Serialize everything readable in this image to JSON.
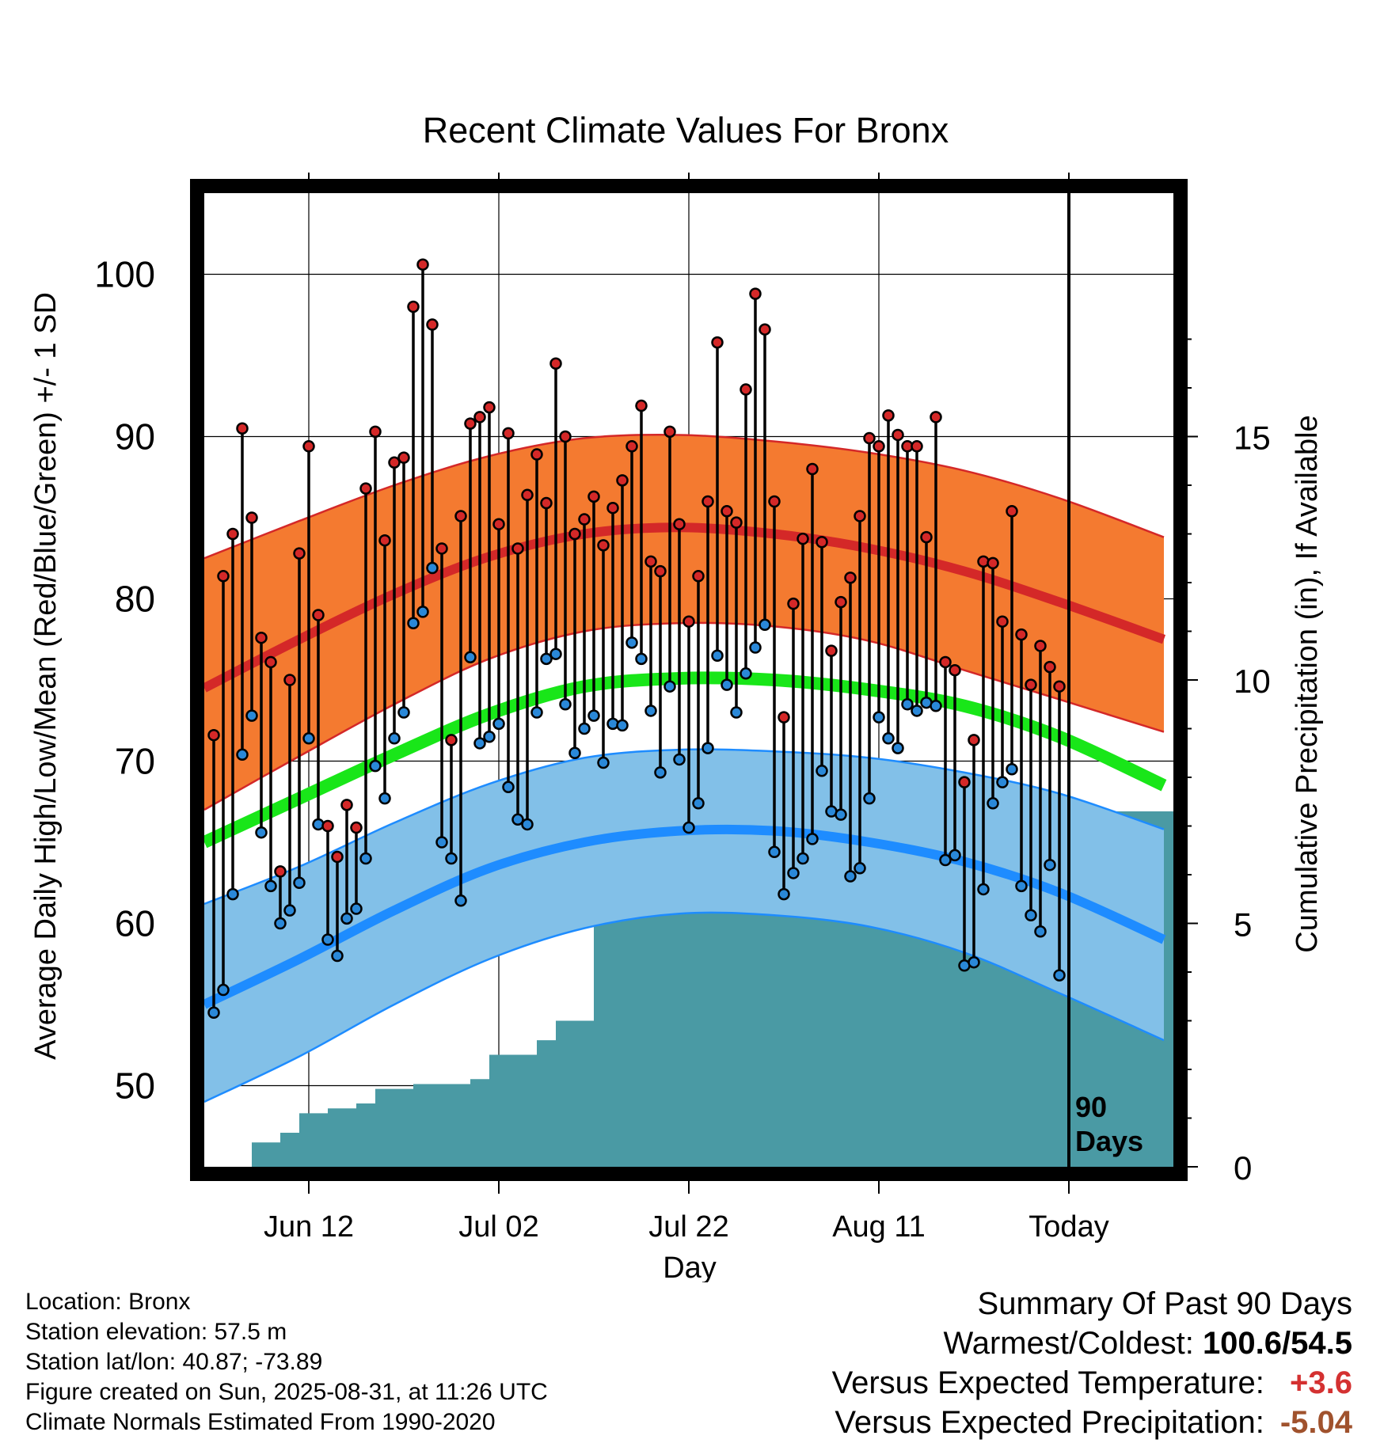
{
  "title": "Recent Climate Values For Bronx",
  "chart_data": {
    "type": "line",
    "title": "Recent Climate Values For Bronx",
    "xlabel": "Day",
    "ylabel": "Average Daily High/Low/Mean (Red/Blue/Green) +/- 1 SD",
    "y2label": "Cumulative Precipitation (in), If Available",
    "ylim": [
      45,
      105
    ],
    "y2lim": [
      0,
      20
    ],
    "xlim": [
      "2025-06-01",
      "2025-09-11"
    ],
    "yticks": [
      "50",
      "60",
      "70",
      "80",
      "90",
      "100"
    ],
    "y2ticks": [
      "0",
      "5",
      "10",
      "15"
    ],
    "xticks": [
      {
        "date": "2025-06-12",
        "label": "Jun 12"
      },
      {
        "date": "2025-07-02",
        "label": "Jul 02"
      },
      {
        "date": "2025-07-22",
        "label": "Jul 22"
      },
      {
        "date": "2025-08-11",
        "label": "Aug 11"
      },
      {
        "date": "2025-08-31",
        "label": "Today"
      }
    ],
    "grid": true,
    "today_marker": {
      "date": "2025-08-31",
      "label": "90 Days"
    },
    "colors": {
      "high_band": "#f47a30",
      "high_mean": "#d42828",
      "low_band": "#82c0e8",
      "low_mean": "#1e8cff",
      "band_edge_high": "#d42828",
      "band_edge_low": "#1e8cff",
      "mean_line": "#19e619",
      "precip": "#4a9aa4",
      "high_point": "#d42828",
      "low_point": "#2a88d8"
    },
    "normals": {
      "dates": [
        "2025-06-01",
        "2025-06-11",
        "2025-06-21",
        "2025-07-01",
        "2025-07-11",
        "2025-07-21",
        "2025-07-31",
        "2025-08-10",
        "2025-08-20",
        "2025-08-30",
        "2025-09-10"
      ],
      "high_mean": [
        74.5,
        77.5,
        80.3,
        82.6,
        84.0,
        84.4,
        84.0,
        83.1,
        81.7,
        79.8,
        77.5
      ],
      "high_upper": [
        82.5,
        84.8,
        87.0,
        88.8,
        89.9,
        90.1,
        89.7,
        89.0,
        87.9,
        86.2,
        83.8
      ],
      "high_lower": [
        67.0,
        70.3,
        73.5,
        76.3,
        78.0,
        78.5,
        78.3,
        77.4,
        75.6,
        73.8,
        71.8
      ],
      "mean_line": [
        65.0,
        67.7,
        70.4,
        72.9,
        74.6,
        75.1,
        75.0,
        74.4,
        73.4,
        71.5,
        68.5
      ],
      "low_mean": [
        55.0,
        57.8,
        60.8,
        63.4,
        65.0,
        65.7,
        65.7,
        65.0,
        63.8,
        61.9,
        59.0
      ],
      "low_upper": [
        61.2,
        63.5,
        66.2,
        68.6,
        70.2,
        70.7,
        70.6,
        70.2,
        69.3,
        68.0,
        65.8
      ],
      "low_lower": [
        49.0,
        51.8,
        55.0,
        57.8,
        59.7,
        60.6,
        60.5,
        59.8,
        58.2,
        55.7,
        52.8
      ]
    },
    "daily": {
      "start_date": "2025-06-02",
      "high": [
        71.6,
        81.4,
        84.0,
        90.5,
        85.0,
        77.6,
        76.1,
        63.2,
        75.0,
        82.8,
        89.4,
        79.0,
        66.0,
        64.1,
        67.3,
        65.9,
        86.8,
        90.3,
        83.6,
        88.4,
        88.7,
        98.0,
        100.6,
        96.9,
        83.1,
        71.3,
        85.1,
        90.8,
        91.2,
        91.8,
        84.6,
        90.2,
        83.1,
        86.4,
        88.9,
        85.9,
        94.5,
        90.0,
        84.0,
        84.9,
        86.3,
        83.3,
        85.6,
        87.3,
        89.4,
        91.9,
        82.3,
        81.7,
        90.3,
        84.6,
        78.6,
        81.4,
        86.0,
        95.8,
        85.4,
        84.7,
        92.9,
        98.8,
        96.6,
        86.0,
        72.7,
        79.7,
        83.7,
        88.0,
        83.5,
        76.8,
        79.8,
        81.3,
        85.1,
        89.9,
        89.4,
        91.3,
        90.1,
        89.4,
        89.4,
        83.8,
        91.2,
        76.1,
        75.6,
        68.7,
        71.3,
        82.3,
        82.2,
        78.6,
        85.4,
        77.8,
        74.7,
        77.1,
        75.8,
        74.6
      ],
      "low": [
        54.5,
        55.9,
        61.8,
        70.4,
        72.8,
        65.6,
        62.3,
        60.0,
        60.8,
        62.5,
        71.4,
        66.1,
        59.0,
        58.0,
        60.3,
        60.9,
        64.0,
        69.7,
        67.7,
        71.4,
        73.0,
        78.5,
        79.2,
        81.9,
        65.0,
        64.0,
        61.4,
        76.4,
        71.1,
        71.5,
        72.3,
        68.4,
        66.4,
        66.1,
        73.0,
        76.3,
        76.6,
        73.5,
        70.5,
        72.0,
        72.8,
        69.9,
        72.3,
        72.2,
        77.3,
        76.3,
        73.1,
        69.3,
        74.6,
        70.1,
        65.9,
        67.4,
        70.8,
        76.5,
        74.7,
        73.0,
        75.4,
        77.0,
        78.4,
        64.4,
        61.8,
        63.1,
        64.0,
        65.2,
        69.4,
        66.9,
        66.7,
        62.9,
        63.4,
        67.7,
        72.7,
        71.4,
        70.8,
        73.5,
        73.1,
        73.6,
        73.4,
        63.9,
        64.2,
        57.4,
        57.6,
        62.1,
        67.4,
        68.7,
        69.5,
        62.3,
        60.5,
        59.5,
        63.6,
        56.8
      ]
    },
    "precipitation": {
      "dates": [
        "2025-06-06",
        "2025-06-09",
        "2025-06-11",
        "2025-06-14",
        "2025-06-17",
        "2025-06-19",
        "2025-06-23",
        "2025-06-29",
        "2025-07-01",
        "2025-07-06",
        "2025-07-08",
        "2025-07-12",
        "2025-07-22",
        "2025-07-25",
        "2025-07-29",
        "2025-08-11",
        "2025-08-14",
        "2025-08-17",
        "2025-08-19",
        "2025-08-21",
        "2025-08-31"
      ],
      "cumulative": [
        0.5,
        0.7,
        1.1,
        1.2,
        1.3,
        1.6,
        1.7,
        1.8,
        2.3,
        2.6,
        3.0,
        5.2,
        5.3,
        5.4,
        5.7,
        5.8,
        6.5,
        6.7,
        6.8,
        7.3,
        7.3
      ]
    }
  },
  "info": {
    "location": "Location: Bronx",
    "elevation": "Station elevation: 57.5 m",
    "latlon": "Station lat/lon: 40.87; -73.89",
    "created": "Figure created on Sun, 2025-08-31, at 11:26 UTC",
    "normals": "Climate Normals Estimated From 1990-2020"
  },
  "summary": {
    "heading": "Summary Of Past 90 Days",
    "warm_cold_label": "Warmest/Coldest:",
    "warm_cold_value": "100.6/54.5",
    "temp_label": "Versus Expected Temperature:",
    "temp_value": "+3.6",
    "precip_label": "Versus Expected Precipitation:",
    "precip_value": "-5.04"
  }
}
